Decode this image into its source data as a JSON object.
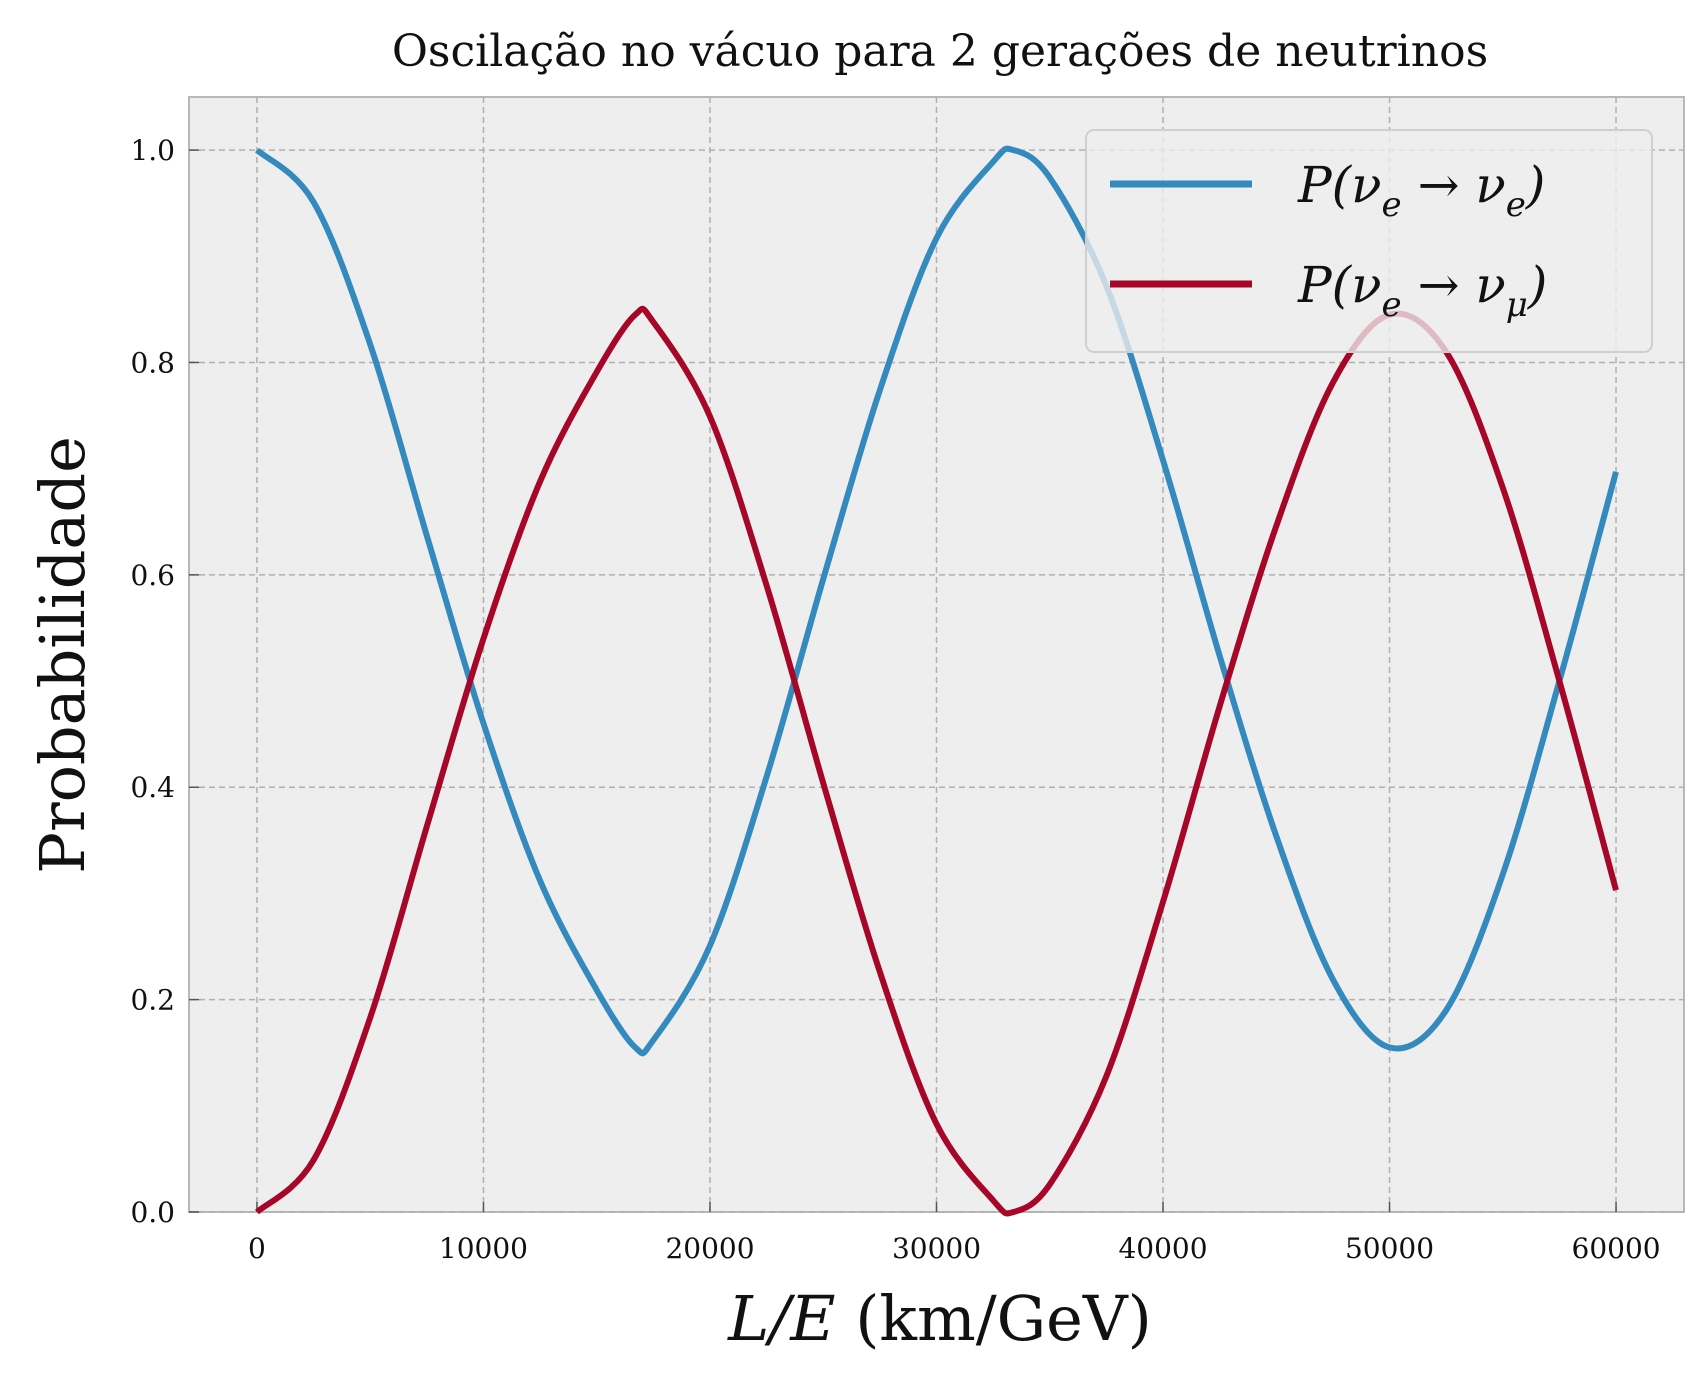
{
  "chart_data": {
    "type": "line",
    "title": "Oscilação no vácuo para 2 gerações de neutrinos",
    "xlabel": {
      "italic": "L/E",
      "unit": " (km/GeV)"
    },
    "ylabel": "Probabilidade",
    "xlim": [
      -3000,
      63000
    ],
    "ylim": [
      0.0,
      1.05
    ],
    "xticks": [
      0,
      10000,
      20000,
      30000,
      40000,
      50000,
      60000
    ],
    "xtick_labels": [
      "0",
      "10000",
      "20000",
      "30000",
      "40000",
      "50000",
      "60000"
    ],
    "yticks": [
      0.0,
      0.2,
      0.4,
      0.6,
      0.8,
      1.0
    ],
    "ytick_labels": [
      "0.0",
      "0.2",
      "0.4",
      "0.6",
      "0.8",
      "1.0"
    ],
    "grid": true,
    "legend_position": "top-right",
    "x": [
      0,
      2500,
      5000,
      7500,
      10000,
      12500,
      15000,
      16700,
      17500,
      20000,
      22500,
      25000,
      27500,
      30000,
      32500,
      33400,
      35000,
      37500,
      40000,
      42500,
      45000,
      47500,
      50000,
      52500,
      55000,
      57500,
      60000
    ],
    "series": [
      {
        "name_main": "P(ν",
        "name_sub1": "e",
        "name_mid": " → ν",
        "name_sub2": "e",
        "name_end": ")",
        "color": "#348abd",
        "values": [
          1.0,
          0.951,
          0.817,
          0.637,
          0.46,
          0.312,
          0.209,
          0.155,
          0.162,
          0.251,
          0.41,
          0.596,
          0.774,
          0.917,
          0.989,
          1.0,
          0.974,
          0.872,
          0.708,
          0.524,
          0.354,
          0.219,
          0.155,
          0.19,
          0.318,
          0.5,
          0.697
        ]
      },
      {
        "name_main": "P(ν",
        "name_sub1": "e",
        "name_mid": " → ν",
        "name_sub2": "μ",
        "name_end": ")",
        "color": "#a60628",
        "values": [
          0.0,
          0.049,
          0.183,
          0.363,
          0.54,
          0.688,
          0.791,
          0.845,
          0.838,
          0.749,
          0.59,
          0.404,
          0.226,
          0.083,
          0.011,
          0.0,
          0.026,
          0.128,
          0.292,
          0.476,
          0.646,
          0.781,
          0.845,
          0.81,
          0.682,
          0.5,
          0.303
        ]
      }
    ]
  }
}
